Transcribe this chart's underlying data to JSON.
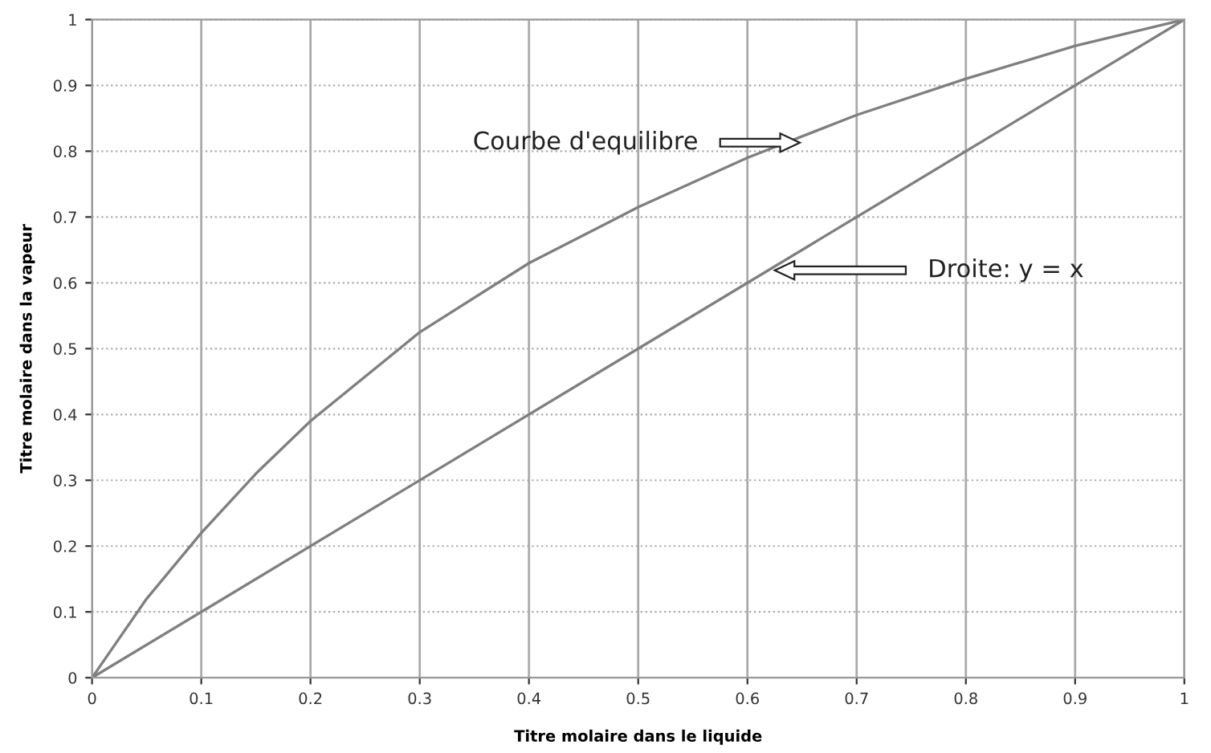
{
  "chart_data": {
    "type": "line",
    "xlabel": "Titre molaire dans le liquide",
    "ylabel": "Titre molaire dans la vapeur",
    "x": [
      0,
      0.05,
      0.1,
      0.15,
      0.2,
      0.3,
      0.4,
      0.5,
      0.6,
      0.7,
      0.8,
      0.9,
      1
    ],
    "series": [
      {
        "color": "#7f7f7f",
        "values": [
          0,
          0.12,
          0.22,
          0.31,
          0.39,
          0.525,
          0.63,
          0.715,
          0.79,
          0.855,
          0.91,
          0.96,
          1
        ]
      },
      {
        "color": "#7f7f7f",
        "x": [
          0,
          1
        ],
        "values": [
          0,
          1
        ]
      }
    ],
    "xlim": [
      0,
      1
    ],
    "ylim": [
      0,
      1
    ],
    "xticks": [
      0,
      0.1,
      0.2,
      0.3,
      0.4,
      0.5,
      0.6,
      0.7,
      0.8,
      0.9,
      1
    ],
    "yticks": [
      0,
      0.1,
      0.2,
      0.3,
      0.4,
      0.5,
      0.6,
      0.7,
      0.8,
      0.9,
      1
    ],
    "grid": true,
    "marker": "none",
    "line_style": "solid",
    "annotations": [
      "Courbe d'equilibre",
      "Droite: y = x"
    ]
  }
}
